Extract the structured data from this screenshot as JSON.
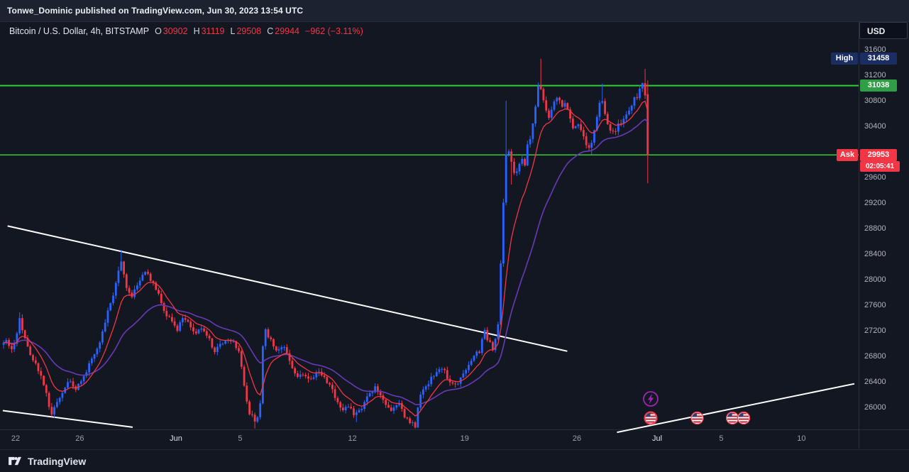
{
  "meta": {
    "publish_text": "Tonwe_Dominic published on TradingView.com, Jun 30, 2023 13:54 UTC"
  },
  "legend": {
    "title": "Bitcoin / U.S. Dollar, 4h, BITSTAMP",
    "o_label": "O",
    "o": "30902",
    "h_label": "H",
    "h": "31119",
    "l_label": "L",
    "l": "29508",
    "c_label": "C",
    "c": "29944",
    "change": "−962 (−3.11%)"
  },
  "labels": {
    "currency": "USD",
    "high_tag": "High",
    "high_value": "31458",
    "level_value": "31038",
    "ask_tag": "Ask",
    "ask_value": "29953",
    "countdown": "02:05:41"
  },
  "footer": {
    "brand": "TradingView"
  },
  "colors": {
    "background": "#131722",
    "up": "#2962ff",
    "down": "#f23645",
    "ma_fast": "#f23645",
    "ma_slow": "#673ab7",
    "trendline": "#ffffff",
    "level_line": "#33cc33",
    "level_label_bg": "#2f9e44",
    "high_label_bg": "#1a2e63",
    "ask_label_bg": "#f23645",
    "axis_text": "#b2b5be"
  },
  "chart_data": {
    "type": "candlestick",
    "title": "Bitcoin / U.S. Dollar",
    "exchange": "BITSTAMP",
    "interval": "4h",
    "currency": "USD",
    "grid": false,
    "ylim": [
      25650,
      32050
    ],
    "visible_time_range": "May 21 - Jul 14, 2023",
    "day_zero_date": "May 20, 2023",
    "start_day": 1.1667,
    "end_day": 41.5,
    "last_candle": {
      "open": 30902,
      "high": 31119,
      "low": 29508,
      "close": 29944,
      "change": -962,
      "change_pct": -3.11
    },
    "session_high": 31458,
    "ask_price": 29953,
    "levels": [
      {
        "price": 31038,
        "color": "#33cc33",
        "width": 2,
        "label": "31038"
      },
      {
        "price": 29953,
        "color": "#33cc33",
        "width": 1.5,
        "label": "29953"
      }
    ],
    "y_ticks": [
      31600,
      31200,
      30800,
      30400,
      29600,
      29200,
      28800,
      28400,
      28000,
      27600,
      27200,
      26800,
      26400,
      26000
    ],
    "x_ticks": [
      {
        "label": "22",
        "day": 2
      },
      {
        "label": "26",
        "day": 6
      },
      {
        "label": "Jun",
        "day": 12,
        "major": true
      },
      {
        "label": "5",
        "day": 16
      },
      {
        "label": "12",
        "day": 23
      },
      {
        "label": "19",
        "day": 30
      },
      {
        "label": "26",
        "day": 37
      },
      {
        "label": "Jul",
        "day": 42,
        "major": true
      },
      {
        "label": "5",
        "day": 46
      },
      {
        "label": "10",
        "day": 51
      }
    ],
    "moving_averages": [
      {
        "name": "fast-ma",
        "type": "ema",
        "length": 10,
        "color": "#f23645"
      },
      {
        "name": "slow-ma",
        "type": "ema",
        "length": 30,
        "color": "#673ab7"
      }
    ],
    "trendlines": [
      {
        "from": [
          1.5,
          28840
        ],
        "to": [
          36.4,
          26880
        ]
      },
      {
        "from": [
          1.2,
          25950
        ],
        "to": [
          9.3,
          25690
        ]
      },
      {
        "from": [
          39.5,
          25610
        ],
        "to": [
          54.3,
          26370
        ]
      }
    ],
    "waypoints": [
      [
        1.17,
        26980
      ],
      [
        1.5,
        27060
      ],
      [
        1.83,
        26900
      ],
      [
        2.1,
        27040
      ],
      [
        2.33,
        27380
      ],
      [
        2.6,
        27120
      ],
      [
        3.0,
        26850
      ],
      [
        3.4,
        26650
      ],
      [
        3.8,
        26400
      ],
      [
        4.1,
        26100
      ],
      [
        4.35,
        25900
      ],
      [
        4.6,
        26050
      ],
      [
        5.0,
        26250
      ],
      [
        5.4,
        26420
      ],
      [
        5.8,
        26280
      ],
      [
        6.2,
        26400
      ],
      [
        6.6,
        26650
      ],
      [
        7.0,
        26850
      ],
      [
        7.4,
        27060
      ],
      [
        7.8,
        27500
      ],
      [
        8.2,
        27760
      ],
      [
        8.6,
        28300
      ],
      [
        8.8,
        28140
      ],
      [
        9.0,
        27860
      ],
      [
        9.3,
        27750
      ],
      [
        9.7,
        27950
      ],
      [
        10.1,
        28120
      ],
      [
        10.5,
        28020
      ],
      [
        10.9,
        27850
      ],
      [
        11.3,
        27550
      ],
      [
        11.7,
        27380
      ],
      [
        12.1,
        27200
      ],
      [
        12.5,
        27420
      ],
      [
        12.9,
        27280
      ],
      [
        13.3,
        27150
      ],
      [
        13.7,
        27260
      ],
      [
        14.1,
        27100
      ],
      [
        14.5,
        26850
      ],
      [
        14.9,
        27000
      ],
      [
        15.3,
        27080
      ],
      [
        15.7,
        27020
      ],
      [
        16.0,
        26900
      ],
      [
        16.3,
        26400
      ],
      [
        16.6,
        25950
      ],
      [
        17.0,
        25780
      ],
      [
        17.3,
        25900
      ],
      [
        17.55,
        27250
      ],
      [
        18.0,
        27050
      ],
      [
        18.4,
        26880
      ],
      [
        18.8,
        26980
      ],
      [
        19.2,
        26700
      ],
      [
        19.6,
        26520
      ],
      [
        20.0,
        26480
      ],
      [
        20.5,
        26420
      ],
      [
        21.0,
        26580
      ],
      [
        21.5,
        26420
      ],
      [
        22.0,
        26180
      ],
      [
        22.4,
        25920
      ],
      [
        22.8,
        26050
      ],
      [
        23.2,
        25880
      ],
      [
        23.6,
        25960
      ],
      [
        24.0,
        26140
      ],
      [
        24.5,
        26320
      ],
      [
        25.0,
        26080
      ],
      [
        25.5,
        25920
      ],
      [
        26.0,
        26040
      ],
      [
        26.5,
        25800
      ],
      [
        27.0,
        25720
      ],
      [
        27.35,
        26230
      ],
      [
        27.8,
        26380
      ],
      [
        28.2,
        26540
      ],
      [
        28.6,
        26640
      ],
      [
        29.0,
        26480
      ],
      [
        29.4,
        26340
      ],
      [
        29.8,
        26440
      ],
      [
        30.2,
        26580
      ],
      [
        30.6,
        26820
      ],
      [
        31.0,
        26880
      ],
      [
        31.3,
        27230
      ],
      [
        31.6,
        27020
      ],
      [
        31.9,
        26880
      ],
      [
        32.17,
        27300
      ],
      [
        32.33,
        28200
      ],
      [
        32.5,
        29200
      ],
      [
        32.67,
        29950
      ],
      [
        32.83,
        30050
      ],
      [
        33.0,
        29850
      ],
      [
        33.2,
        29600
      ],
      [
        33.4,
        29750
      ],
      [
        33.6,
        29950
      ],
      [
        33.8,
        29700
      ],
      [
        34.0,
        30100
      ],
      [
        34.2,
        30250
      ],
      [
        34.45,
        30650
      ],
      [
        34.7,
        31120
      ],
      [
        34.9,
        30900
      ],
      [
        35.1,
        30700
      ],
      [
        35.35,
        30500
      ],
      [
        35.6,
        30750
      ],
      [
        35.85,
        30880
      ],
      [
        36.1,
        30700
      ],
      [
        36.35,
        30800
      ],
      [
        36.6,
        30550
      ],
      [
        36.85,
        30350
      ],
      [
        37.1,
        30500
      ],
      [
        37.35,
        30300
      ],
      [
        37.6,
        30150
      ],
      [
        37.9,
        30050
      ],
      [
        38.1,
        30250
      ],
      [
        38.35,
        30550
      ],
      [
        38.6,
        30920
      ],
      [
        38.85,
        30600
      ],
      [
        39.1,
        30350
      ],
      [
        39.4,
        30300
      ],
      [
        39.7,
        30450
      ],
      [
        40.0,
        30520
      ],
      [
        40.3,
        30650
      ],
      [
        40.6,
        30800
      ],
      [
        40.9,
        30900
      ],
      [
        41.1,
        31100
      ],
      [
        41.33,
        30902
      ],
      [
        41.5,
        29944
      ]
    ],
    "spikes": [
      {
        "day": 2.33,
        "high": 27490
      },
      {
        "day": 4.35,
        "low": 25840
      },
      {
        "day": 8.6,
        "high": 28470
      },
      {
        "day": 17.0,
        "low": 25670
      },
      {
        "day": 23.2,
        "low": 25770
      },
      {
        "day": 27.0,
        "low": 25670
      },
      {
        "day": 32.6,
        "high": 30800
      },
      {
        "day": 32.9,
        "low": 29490
      },
      {
        "day": 34.7,
        "high": 31458
      },
      {
        "day": 37.9,
        "low": 29960
      },
      {
        "day": 38.6,
        "high": 31070
      },
      {
        "day": 41.17,
        "high": 31300
      }
    ],
    "events": [
      {
        "icon": "lightning",
        "day": 41.6,
        "y": 562,
        "ring": "#9c27b0"
      },
      {
        "icon": "us-flag",
        "day": 41.6,
        "y": 589,
        "ring": "#f23645",
        "ring_width": 2
      },
      {
        "icon": "us-flag",
        "day": 44.5,
        "y": 589,
        "ring": "#f23645",
        "ring_width": 1.2
      },
      {
        "icon": "us-flag",
        "day": 46.7,
        "y": 589,
        "ring": "#f23645",
        "ring_width": 1.2
      },
      {
        "icon": "us-flag",
        "day": 47.4,
        "y": 589,
        "ring": "#f23645",
        "ring_width": 1.2
      }
    ]
  }
}
